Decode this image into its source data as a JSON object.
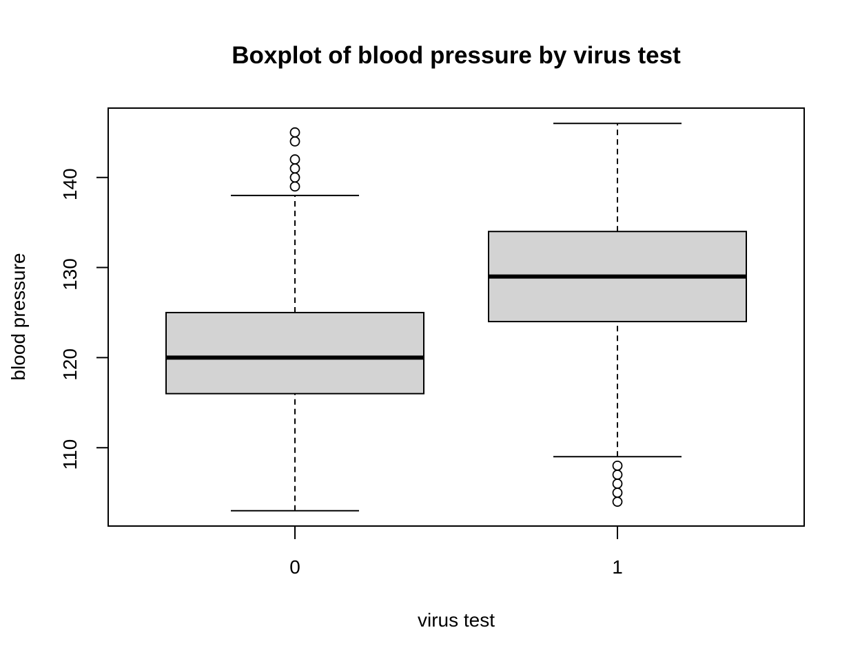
{
  "chart_data": {
    "type": "boxplot",
    "title": "Boxplot of blood pressure by virus test",
    "xlabel": "virus test",
    "ylabel": "blood pressure",
    "categories": [
      "0",
      "1"
    ],
    "y_ticks": [
      110,
      120,
      130,
      140
    ],
    "ylim": [
      101.3,
      147.7
    ],
    "grid": false,
    "legend": "none",
    "box_fill": "#d3d3d3",
    "stroke_color": "#000000",
    "boxes": [
      {
        "category": "0",
        "whisker_low": 103,
        "q1": 116,
        "median": 120,
        "q3": 125,
        "whisker_high": 138,
        "outliers": [
          139,
          140,
          141,
          142,
          144,
          145
        ]
      },
      {
        "category": "1",
        "whisker_low": 109,
        "q1": 124,
        "median": 129,
        "q3": 134,
        "whisker_high": 146,
        "outliers": [
          104,
          105,
          106,
          107,
          108
        ]
      }
    ]
  }
}
